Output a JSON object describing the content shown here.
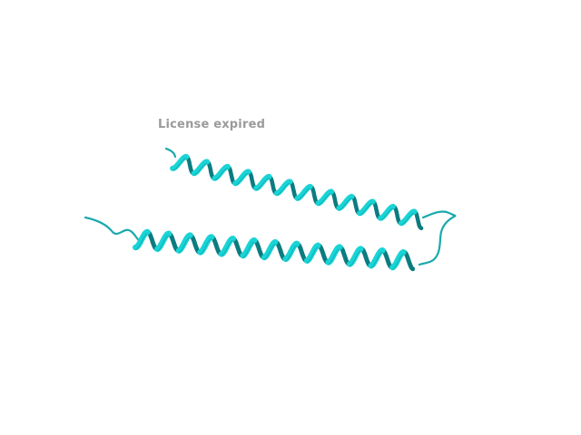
{
  "watermark": {
    "text": "License expired",
    "color": "#9a9a9a"
  },
  "structure": {
    "representation": "cartoon",
    "colors": {
      "helix_face": "#19d4d6",
      "helix_back": "#0b7c80",
      "loop": "#1aa9ad",
      "background": "#ffffff"
    },
    "helices": [
      {
        "name": "upper-helix",
        "turns": 12
      },
      {
        "name": "lower-helix",
        "turns": 13
      }
    ]
  }
}
